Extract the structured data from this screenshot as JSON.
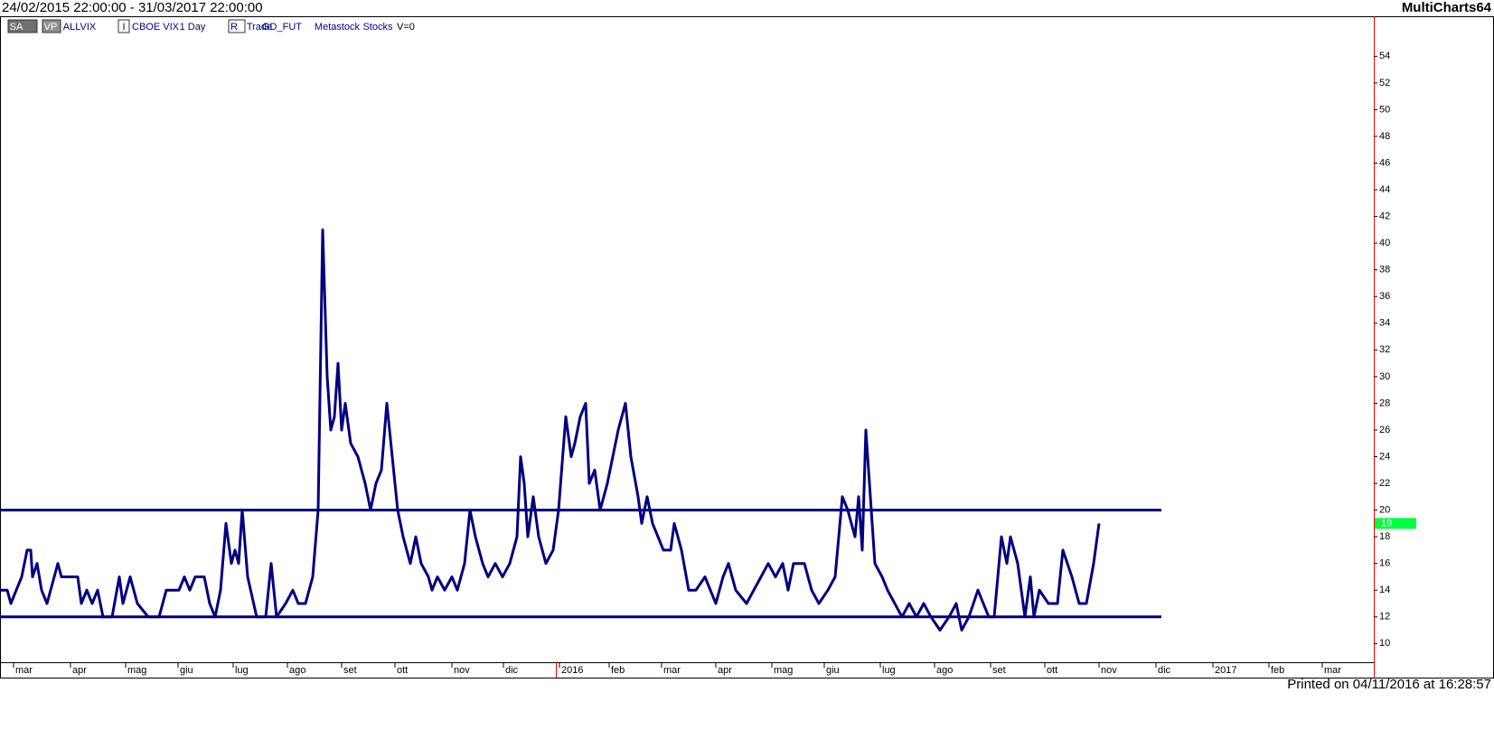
{
  "header": {
    "range": "24/02/2015 22:00:00 - 31/03/2017 22:00:00",
    "brand": "MultiCharts64"
  },
  "toolbar": [
    "SA",
    "VP",
    "ALLVIX",
    "I",
    "CBOE VIX",
    "1 Day",
    "R",
    "Trade",
    "GD_FUT",
    "Metastock",
    "Stocks",
    "V=0"
  ],
  "footer": "Printed on 04/11/2016 at 16:28:57",
  "chart_data": {
    "type": "line",
    "x": [
      0,
      0.8,
      1.2,
      1.8,
      2.4,
      3.0,
      3.4,
      3.6,
      4.1,
      4.6,
      5.2,
      6.0,
      6.4,
      6.8,
      8.6,
      9.0,
      9.6,
      10.2,
      10.8,
      11.4,
      12.4,
      13.2,
      13.6,
      14.4,
      15.2,
      16.4,
      17.6,
      18.4,
      19.8,
      20.4,
      21.0,
      21.6,
      22.6,
      23.2,
      23.8,
      24.4,
      25.0,
      25.6,
      26.0,
      26.4,
      26.8,
      27.4,
      28.4,
      29.4,
      30.0,
      30.6,
      31.6,
      32.4,
      33.0,
      33.8,
      34.6,
      35.2,
      35.7,
      36.2,
      36.6,
      37.0,
      37.4,
      37.8,
      38.2,
      38.8,
      39.6,
      40.4,
      41.0,
      41.6,
      42.2,
      42.8,
      43.4,
      44.0,
      44.6,
      45.4,
      46.0,
      46.6,
      47.4,
      47.8,
      48.4,
      49.2,
      50.0,
      50.6,
      51.4,
      52.0,
      52.6,
      53.4,
      54.0,
      54.8,
      55.6,
      56.4,
      57.2,
      57.6,
      58.0,
      58.4,
      59.0,
      59.6,
      60.4,
      61.2,
      61.8,
      62.6,
      63.2,
      63.6,
      64.2,
      64.8,
      65.2,
      65.8,
      66.4,
      67.2,
      68.4,
      69.2,
      69.8,
      70.6,
      71.0,
      71.6,
      72.2,
      72.8,
      73.4,
      74.2,
      74.6,
      75.4,
      76.2,
      77.0,
      78.0,
      79.2,
      80.0,
      80.6,
      81.4,
      82.6,
      83.4,
      84.2,
      85.0,
      85.8,
      86.6,
      87.2,
      87.8,
      89.0,
      89.8,
      90.6,
      91.6,
      92.4,
      93.2,
      93.8,
      94.6,
      95.0,
      95.4,
      95.8,
      96.4,
      96.8,
      97.6,
      98.2,
      99.0,
      99.8,
      100.6,
      101.4,
      102.2,
      103.0,
      104.0,
      105.0,
      105.8,
      106.4,
      107.2,
      108.2,
      109.4,
      110.0,
      110.8,
      111.4,
      111.8,
      112.6,
      113.4,
      114.0,
      114.4,
      115.0,
      116.0,
      117.0,
      117.6,
      118.6,
      119.4,
      120.2,
      121.0,
      121.6
    ],
    "series": [
      {
        "name": "ALLVIX",
        "color": "#000080",
        "values": [
          14,
          14,
          13,
          14,
          15,
          17,
          17,
          15,
          16,
          14,
          13,
          15,
          16,
          15,
          15,
          13,
          14,
          13,
          14,
          12,
          12,
          15,
          13,
          15,
          13,
          12,
          12,
          14,
          14,
          15,
          14,
          15,
          15,
          13,
          12,
          14,
          19,
          16,
          17,
          16,
          20,
          15,
          12,
          12,
          16,
          12,
          13,
          14,
          13,
          13,
          15,
          20,
          41,
          30,
          26,
          27,
          31,
          26,
          28,
          25,
          24,
          22,
          20,
          22,
          23,
          28,
          24,
          20,
          18,
          16,
          18,
          16,
          15,
          14,
          15,
          14,
          15,
          14,
          16,
          20,
          18,
          16,
          15,
          16,
          15,
          16,
          18,
          24,
          22,
          18,
          21,
          18,
          16,
          17,
          20,
          27,
          24,
          25,
          27,
          28,
          22,
          23,
          20,
          22,
          26,
          28,
          24,
          21,
          19,
          21,
          19,
          18,
          17,
          17,
          19,
          17,
          14,
          14,
          15,
          13,
          15,
          16,
          14,
          13,
          14,
          15,
          16,
          15,
          16,
          14,
          16,
          16,
          14,
          13,
          14,
          15,
          21,
          20,
          18,
          21,
          17,
          26,
          20,
          16,
          15,
          14,
          13,
          12,
          13,
          12,
          13,
          12,
          11,
          12,
          13,
          11,
          12,
          14,
          12,
          12,
          18,
          16,
          18,
          16,
          12,
          15,
          12,
          14,
          13,
          13,
          17,
          15,
          13,
          13,
          16,
          19
        ]
      }
    ],
    "levels": [
      {
        "y": 20,
        "x_end": 128.5
      },
      {
        "y": 12,
        "x_end": 128.5
      }
    ],
    "xlim": [
      0,
      152
    ],
    "xticks": [
      {
        "value": 1.5,
        "label": "mar"
      },
      {
        "value": 7.8,
        "label": "apr"
      },
      {
        "value": 13.9,
        "label": "mag"
      },
      {
        "value": 19.7,
        "label": "giu"
      },
      {
        "value": 25.8,
        "label": "lug"
      },
      {
        "value": 31.8,
        "label": "ago"
      },
      {
        "value": 37.8,
        "label": "set"
      },
      {
        "value": 43.7,
        "label": "ott"
      },
      {
        "value": 50,
        "label": "nov"
      },
      {
        "value": 55.7,
        "label": "dic"
      },
      {
        "value": 61.9,
        "label": "2016"
      },
      {
        "value": 67.4,
        "label": "feb"
      },
      {
        "value": 73.2,
        "label": "mar"
      },
      {
        "value": 79.2,
        "label": "apr"
      },
      {
        "value": 85.4,
        "label": "mag"
      },
      {
        "value": 91.2,
        "label": "giu"
      },
      {
        "value": 97.4,
        "label": "lug"
      },
      {
        "value": 103.4,
        "label": "ago"
      },
      {
        "value": 109.6,
        "label": "set"
      },
      {
        "value": 115.6,
        "label": "ott"
      },
      {
        "value": 121.6,
        "label": "nov"
      },
      {
        "value": 127.9,
        "label": "dic"
      },
      {
        "value": 134.2,
        "label": "2017"
      },
      {
        "value": 140.4,
        "label": "feb"
      },
      {
        "value": 146.3,
        "label": "mar"
      }
    ],
    "ylim": [
      8.6,
      57
    ],
    "yticks": [
      10,
      12,
      14,
      16,
      18,
      20,
      22,
      24,
      26,
      28,
      30,
      32,
      34,
      36,
      38,
      40,
      42,
      44,
      46,
      48,
      50,
      52,
      54
    ]
  }
}
